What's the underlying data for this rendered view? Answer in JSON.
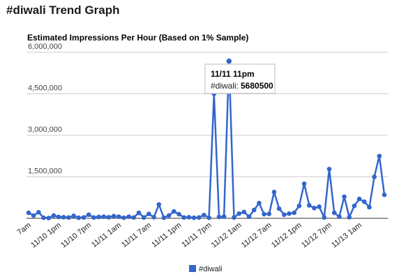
{
  "page": {
    "title": "#diwali Trend Graph"
  },
  "chart_data": {
    "type": "line",
    "title": "Estimated Impressions Per Hour (Based on 1% Sample)",
    "xlabel": "",
    "ylabel": "",
    "ylim": [
      0,
      6000000
    ],
    "yticks": [
      "6,000,000",
      "4,500,000",
      "3,000,000",
      "1,500,000"
    ],
    "ytick_values": [
      6000000,
      4500000,
      3000000,
      1500000
    ],
    "xtick_labels": [
      "7am",
      "11/10 1pm",
      "11/10 7pm",
      "11/11 1am",
      "11/11 7am",
      "11/11 1pm",
      "11/11 7pm",
      "11/12 1am",
      "11/12 7am",
      "11/12 1pm",
      "11/12 7pm",
      "11/13 1am"
    ],
    "xtick_index": [
      0,
      6,
      12,
      18,
      24,
      30,
      36,
      42,
      48,
      54,
      60,
      66
    ],
    "grid": true,
    "legend_position": "bottom",
    "color": "#3366cc",
    "series": [
      {
        "name": "#diwali",
        "values": [
          200000,
          100000,
          220000,
          20000,
          10000,
          100000,
          50000,
          40000,
          30000,
          90000,
          20000,
          30000,
          130000,
          30000,
          50000,
          60000,
          40000,
          80000,
          60000,
          20000,
          60000,
          30000,
          200000,
          30000,
          160000,
          40000,
          500000,
          20000,
          100000,
          250000,
          150000,
          30000,
          40000,
          20000,
          30000,
          120000,
          20000,
          4500000,
          50000,
          60000,
          5680500,
          30000,
          170000,
          230000,
          60000,
          300000,
          550000,
          150000,
          160000,
          950000,
          350000,
          130000,
          170000,
          200000,
          450000,
          1250000,
          470000,
          370000,
          420000,
          30000,
          1780000,
          200000,
          60000,
          780000,
          40000,
          450000,
          700000,
          600000,
          400000,
          1500000,
          2250000,
          850000
        ]
      }
    ],
    "tooltip": {
      "title": "11/11 11pm",
      "series": "#diwali:",
      "value": "5680500",
      "index": 40
    }
  }
}
